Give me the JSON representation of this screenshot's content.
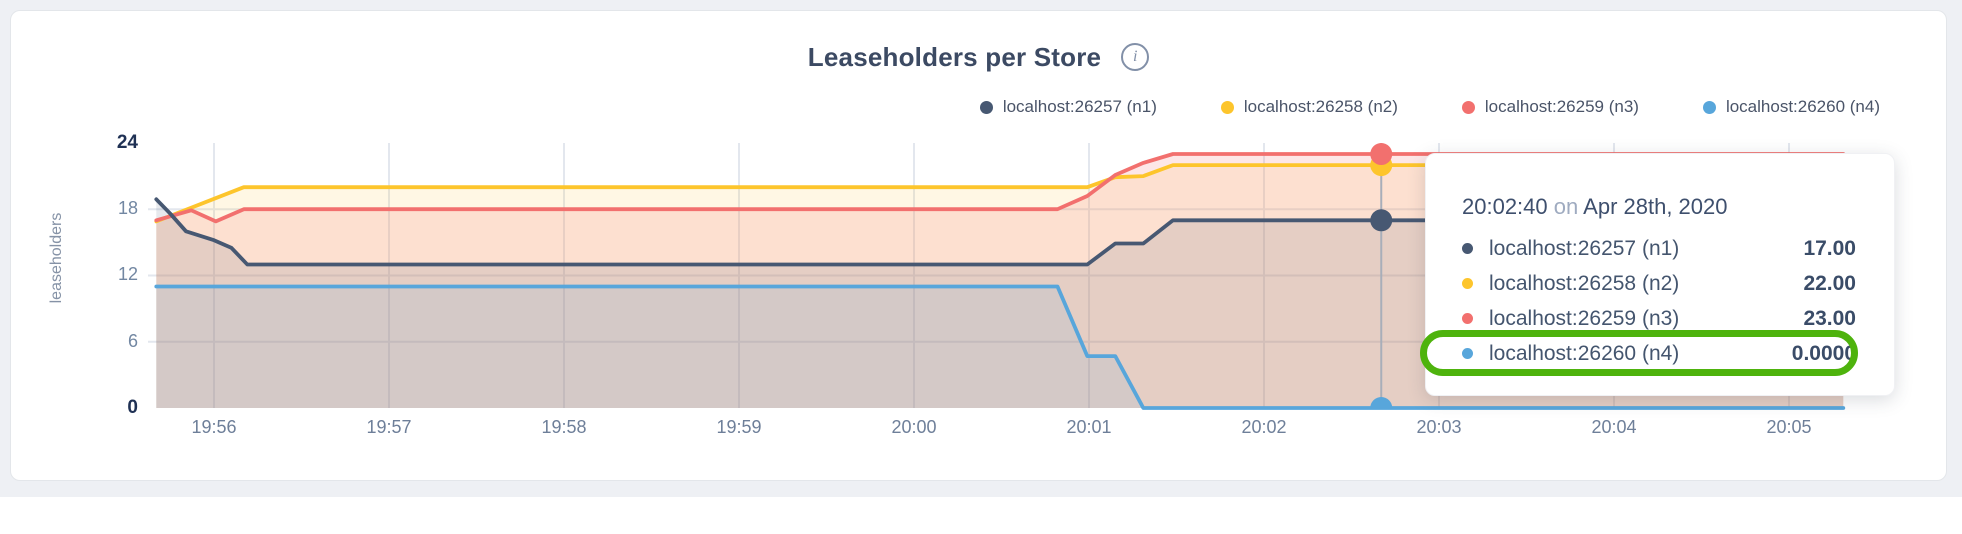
{
  "card": {
    "title": "Leaseholders per Store",
    "info_icon": "i"
  },
  "legend": {
    "items": [
      {
        "label": "localhost:26257 (n1)",
        "color": "#475872"
      },
      {
        "label": "localhost:26258 (n2)",
        "color": "#fdc52c"
      },
      {
        "label": "localhost:26259 (n3)",
        "color": "#f2706e"
      },
      {
        "label": "localhost:26260 (n4)",
        "color": "#58a6db"
      }
    ]
  },
  "chart_data": {
    "type": "area",
    "title": "Leaseholders per Store",
    "xlabel": "",
    "ylabel": "leaseholders",
    "ylim": [
      0,
      24
    ],
    "grid": "on",
    "legend_position": "top-right",
    "x_unit": "minutes after 19:56",
    "x_range": [
      -0.33,
      9.31
    ],
    "x_ticks": [
      {
        "t": 0,
        "label": "19:56"
      },
      {
        "t": 1,
        "label": "19:57"
      },
      {
        "t": 2,
        "label": "19:58"
      },
      {
        "t": 3,
        "label": "19:59"
      },
      {
        "t": 4,
        "label": "20:00"
      },
      {
        "t": 5,
        "label": "20:01"
      },
      {
        "t": 6,
        "label": "20:02"
      },
      {
        "t": 7,
        "label": "20:03"
      },
      {
        "t": 8,
        "label": "20:04"
      },
      {
        "t": 9,
        "label": "20:05"
      }
    ],
    "y_ticks": [
      {
        "v": 24,
        "label": "24",
        "bold": true
      },
      {
        "v": 18,
        "label": "18",
        "bold": false
      },
      {
        "v": 12,
        "label": "12",
        "bold": false
      },
      {
        "v": 6,
        "label": "6",
        "bold": false
      },
      {
        "v": 0,
        "label": "0",
        "bold": true
      }
    ],
    "y_gridlines": [
      6,
      12,
      18
    ],
    "series": [
      {
        "name": "localhost:26258 (n2)",
        "color": "#fdc52c",
        "fill_opacity": 0.13,
        "points": [
          [
            -0.33,
            16.9
          ],
          [
            0.17,
            20
          ],
          [
            4.99,
            20
          ],
          [
            5.15,
            20.9
          ],
          [
            5.31,
            21
          ],
          [
            5.48,
            22
          ],
          [
            9.31,
            22
          ]
        ]
      },
      {
        "name": "localhost:26259 (n3)",
        "color": "#f2706e",
        "fill_opacity": 0.17,
        "points": [
          [
            -0.33,
            17
          ],
          [
            -0.13,
            17.9
          ],
          [
            0.01,
            16.9
          ],
          [
            0.17,
            18
          ],
          [
            4.82,
            18
          ],
          [
            4.99,
            19.2
          ],
          [
            5.15,
            21.1
          ],
          [
            5.31,
            22.2
          ],
          [
            5.48,
            23
          ],
          [
            9.31,
            23
          ]
        ]
      },
      {
        "name": "localhost:26257 (n1)",
        "color": "#475872",
        "fill_opacity": 0.13,
        "points": [
          [
            -0.33,
            18.9
          ],
          [
            -0.25,
            17.6
          ],
          [
            -0.16,
            16.0
          ],
          [
            0,
            15.2
          ],
          [
            0.1,
            14.5
          ],
          [
            0.19,
            13
          ],
          [
            4.99,
            13
          ],
          [
            5.15,
            14.9
          ],
          [
            5.31,
            14.9
          ],
          [
            5.48,
            17
          ],
          [
            9.31,
            17
          ]
        ]
      },
      {
        "name": "localhost:26260 (n4)",
        "color": "#58a6db",
        "fill_opacity": 0.12,
        "points": [
          [
            -0.33,
            11
          ],
          [
            4.82,
            11
          ],
          [
            4.99,
            4.7
          ],
          [
            5.15,
            4.7
          ],
          [
            5.31,
            0
          ],
          [
            9.31,
            0
          ]
        ]
      }
    ],
    "hover": {
      "t": 6.67,
      "line_color": "#a8aeb9",
      "marker_radius": 11,
      "markers": [
        {
          "series": "localhost:26258 (n2)",
          "color": "#fdc52c",
          "value": 22
        },
        {
          "series": "localhost:26259 (n3)",
          "color": "#f2706e",
          "value": 23
        },
        {
          "series": "localhost:26257 (n1)",
          "color": "#475872",
          "value": 17
        },
        {
          "series": "localhost:26260 (n4)",
          "color": "#58a6db",
          "value": 0
        }
      ]
    }
  },
  "tooltip": {
    "time": "20:02:40",
    "on_word": "on",
    "date": "Apr 28th, 2020",
    "rows": [
      {
        "label": "localhost:26257 (n1)",
        "color": "#475872",
        "value": "17.00",
        "highlight": false
      },
      {
        "label": "localhost:26258 (n2)",
        "color": "#fdc52c",
        "value": "22.00",
        "highlight": false
      },
      {
        "label": "localhost:26259 (n3)",
        "color": "#f2706e",
        "value": "23.00",
        "highlight": false
      },
      {
        "label": "localhost:26260 (n4)",
        "color": "#58a6db",
        "value": "0.0000",
        "highlight": true
      }
    ],
    "highlight_color": "#4eb30d"
  }
}
